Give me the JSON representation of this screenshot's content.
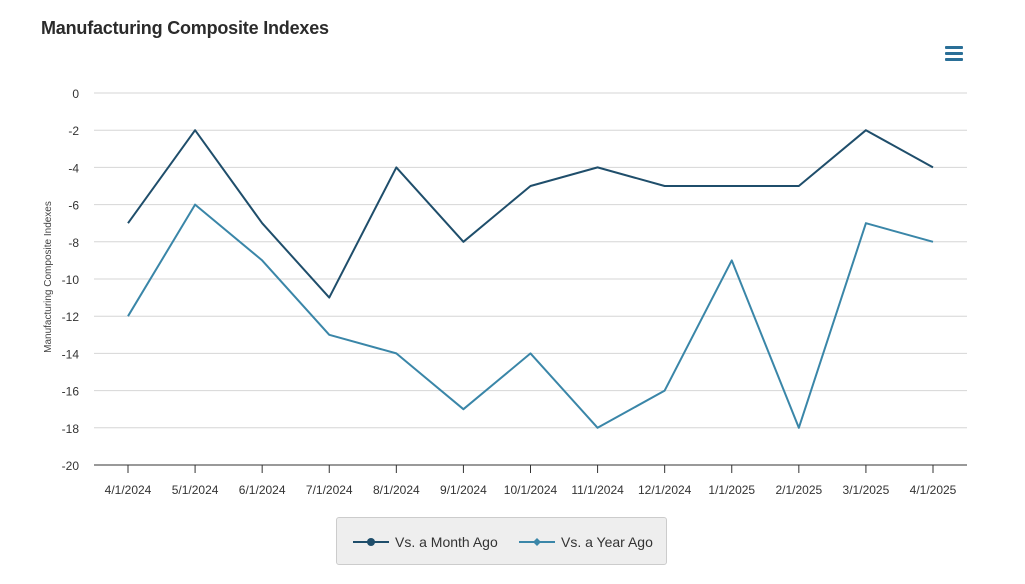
{
  "title": "Manufacturing Composite Indexes",
  "menu_icon": "hamburger-menu-icon",
  "chart_data": {
    "type": "line",
    "title": "Manufacturing Composite Indexes",
    "ylabel": "Manufacturing Composite Indexes",
    "xlabel": "",
    "ylim": [
      -20,
      0
    ],
    "yticks": [
      0,
      -2,
      -4,
      -6,
      -8,
      -10,
      -12,
      -14,
      -16,
      -18,
      -20
    ],
    "categories": [
      "4/1/2024",
      "5/1/2024",
      "6/1/2024",
      "7/1/2024",
      "8/1/2024",
      "9/1/2024",
      "10/1/2024",
      "11/1/2024",
      "12/1/2024",
      "1/1/2025",
      "2/1/2025",
      "3/1/2025",
      "4/1/2025"
    ],
    "grid": true,
    "legend_position": "bottom",
    "series": [
      {
        "name": "Vs. a Month Ago",
        "color": "#1f4e6b",
        "marker": "circle",
        "values": [
          -7,
          -2,
          -7,
          -11,
          -4,
          -8,
          -5,
          -4,
          -5,
          -5,
          -5,
          -2,
          -4
        ]
      },
      {
        "name": "Vs. a Year Ago",
        "color": "#3a86a8",
        "marker": "diamond",
        "values": [
          -12,
          -6,
          -9,
          -13,
          -14,
          -17,
          -14,
          -18,
          -16,
          -9,
          -18,
          -7,
          -8
        ]
      }
    ]
  }
}
